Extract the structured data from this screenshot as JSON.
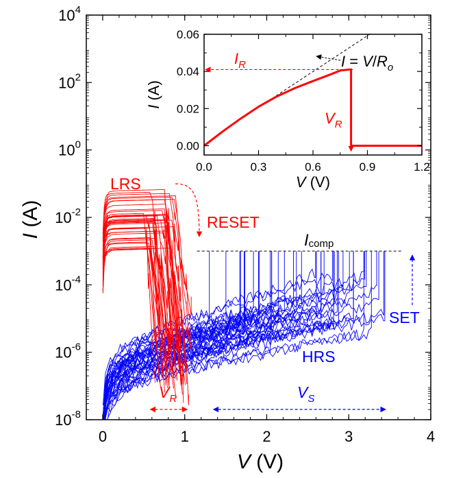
{
  "chart_data": [
    {
      "type": "line",
      "scale": {
        "x": "linear",
        "y": "log"
      },
      "xlim": [
        -0.2,
        4.0
      ],
      "ylim": [
        1e-08,
        10000.0
      ],
      "xlabel_var": "V",
      "xlabel_unit": " (V)",
      "ylabel_var": "I",
      "ylabel_unit": " (A)",
      "x_ticks": [
        0,
        1,
        2,
        3,
        4
      ],
      "x_tick_labels": [
        "0",
        "1",
        "2",
        "3",
        "4"
      ],
      "y_tick_exponents": [
        4,
        2,
        0,
        -2,
        -4,
        -6,
        -8
      ],
      "y_tick_base": "10",
      "series": [
        {
          "name": "LRS",
          "color": "#ff0000",
          "curve_count": 40,
          "v_reset_range": [
            0.55,
            1.0
          ],
          "i_peak_range": [
            0.001,
            0.06
          ],
          "sample_curve": {
            "x": [
              0,
              0.02,
              0.05,
              0.1,
              0.2,
              0.4,
              0.6,
              0.7
            ],
            "y": [
              1e-08,
              0.0001,
              0.005,
              0.015,
              0.025,
              0.03,
              0.032,
              0.033
            ]
          }
        },
        {
          "name": "HRS",
          "color": "#0000ff",
          "curve_count": 40,
          "v_set_range": [
            1.3,
            3.5
          ],
          "compliance_current": 0.001,
          "sample_curve": {
            "x": [
              0,
              0.1,
              0.5,
              1.0,
              1.5,
              2.0,
              2.5,
              3.0
            ],
            "y": [
              1e-08,
              1e-07,
              5e-07,
              1e-06,
              2e-06,
              4e-06,
              8e-06,
              2e-05
            ]
          }
        }
      ],
      "annotations": {
        "lrs": "LRS",
        "reset": "RESET",
        "icomp_var": "I",
        "icomp_sub": "comp",
        "set": "SET",
        "hrs": "HRS",
        "vr_var": "V",
        "vr_sub": "R",
        "vs_var": "V",
        "vs_sub": "S"
      },
      "vr_span": [
        0.58,
        1.03
      ],
      "vs_span": [
        1.35,
        3.45
      ],
      "icomp_line": {
        "x": [
          1.15,
          3.65
        ],
        "y": 0.001
      }
    },
    {
      "type": "line",
      "scale": {
        "x": "linear",
        "y": "linear"
      },
      "xlim": [
        0.0,
        1.2
      ],
      "ylim": [
        -0.005,
        0.06
      ],
      "xlabel_var": "V",
      "xlabel_unit": " (V)",
      "ylabel_var": "I",
      "ylabel_unit": " (A)",
      "x_ticks": [
        0.0,
        0.3,
        0.6,
        0.9,
        1.2
      ],
      "x_tick_labels": [
        "0.0",
        "0.3",
        "0.6",
        "0.9",
        "1.2"
      ],
      "y_ticks": [
        0.0,
        0.02,
        0.04,
        0.06
      ],
      "y_tick_labels": [
        "0.00",
        "0.02",
        "0.04",
        "0.06"
      ],
      "series": [
        {
          "color": "#ff0000",
          "x": [
            0.0,
            0.1,
            0.2,
            0.3,
            0.4,
            0.5,
            0.6,
            0.7,
            0.75,
            0.8,
            0.81,
            0.81,
            0.9,
            1.0,
            1.1,
            1.2
          ],
          "y": [
            0.0,
            0.0075,
            0.0145,
            0.021,
            0.0265,
            0.031,
            0.0348,
            0.0385,
            0.0405,
            0.041,
            0.041,
            0.0,
            0.0,
            0.0,
            0.0,
            0.0
          ]
        }
      ],
      "fit_line": {
        "x": [
          0.22,
          0.92
        ],
        "y": [
          0.0155,
          0.0605
        ]
      },
      "annotations": {
        "ir_var": "I",
        "ir_sub": "R",
        "vr_var": "V",
        "vr_sub": "R",
        "ohm_left": "I",
        "ohm_mid": " = ",
        "ohm_var": "V",
        "ohm_slash": "/",
        "ohm_r": "R",
        "ohm_sub": "o"
      },
      "ir_arrow": {
        "x": [
          0.82,
          0.0
        ],
        "y": 0.041
      },
      "vr_arrow": {
        "x": 0.81,
        "y": [
          0.041,
          0.0
        ]
      }
    }
  ]
}
